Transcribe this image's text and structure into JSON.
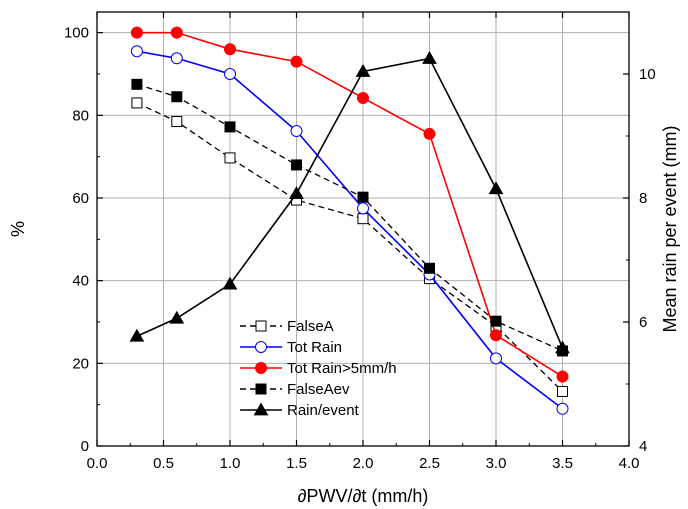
{
  "chart_data": {
    "type": "line",
    "xlabel": "∂PWV/∂t (mm/h)",
    "ylabel": "%",
    "y2label": "Mean rain per event (mm)",
    "xlim": [
      0.0,
      4.0
    ],
    "ylim": [
      0,
      105
    ],
    "y2lim": [
      4,
      11
    ],
    "xticks": [
      "0.0",
      "0.5",
      "1.0",
      "1.5",
      "2.0",
      "2.5",
      "3.0",
      "3.5",
      "4.0"
    ],
    "yticks": [
      "0",
      "20",
      "40",
      "60",
      "80",
      "100"
    ],
    "y2ticks": [
      "4",
      "6",
      "8",
      "10"
    ],
    "grid": true,
    "legend_position": "lower-left",
    "x": [
      0.3,
      0.6,
      1.0,
      1.5,
      2.0,
      2.5,
      3.0,
      3.5
    ],
    "series": [
      {
        "name": "FalseA",
        "axis": "left",
        "color": "#000000",
        "dash": "dashed",
        "marker": "open-square",
        "values": [
          83.0,
          78.5,
          69.7,
          59.5,
          55.0,
          40.5,
          29.0,
          13.2
        ]
      },
      {
        "name": "Tot Rain",
        "axis": "left",
        "color": "#0000ff",
        "dash": "solid",
        "marker": "open-circle",
        "values": [
          95.5,
          93.8,
          90.0,
          76.2,
          57.5,
          41.5,
          21.2,
          9.0
        ]
      },
      {
        "name": "Tot Rain>5mm/h",
        "axis": "left",
        "color": "#ff0000",
        "dash": "solid",
        "marker": "filled-circle",
        "values": [
          100.0,
          100.0,
          96.0,
          93.0,
          84.2,
          75.5,
          26.8,
          16.8
        ]
      },
      {
        "name": "FalseAev",
        "axis": "left",
        "color": "#000000",
        "dash": "dashed",
        "marker": "filled-square",
        "values": [
          87.5,
          84.5,
          77.2,
          68.0,
          60.2,
          43.0,
          30.2,
          23.0
        ]
      },
      {
        "name": "Rain/event",
        "axis": "right",
        "color": "#000000",
        "dash": "solid",
        "marker": "filled-triangle",
        "values": [
          5.77,
          6.06,
          6.61,
          8.07,
          10.04,
          10.25,
          8.15,
          5.58
        ]
      }
    ]
  }
}
